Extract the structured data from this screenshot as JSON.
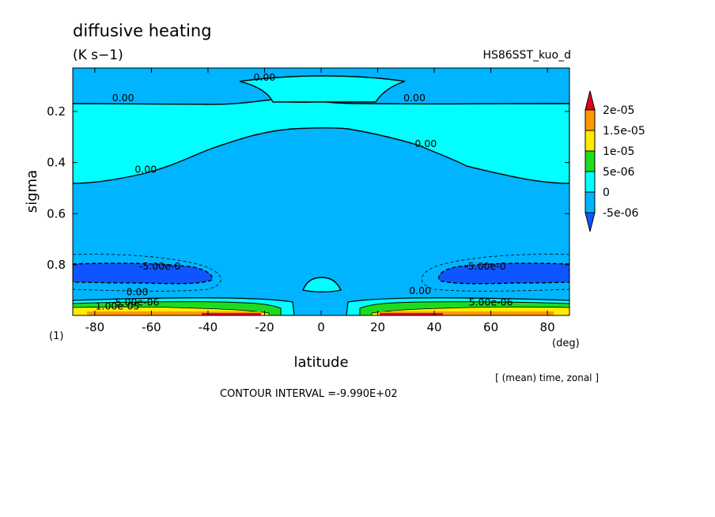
{
  "chart_data": {
    "type": "heatmap",
    "title": "diffusive heating",
    "units": "(K s−1)",
    "run_name": "HS86SST_kuo_d",
    "xlabel": "latitude",
    "x_units": "(deg)",
    "ylabel": "sigma",
    "y_index_label": "(1)",
    "xlim": [
      -87.8,
      87.8
    ],
    "ylim": [
      0.03,
      0.998
    ],
    "y_inverted": true,
    "x_ticks": [
      "-80",
      "-60",
      "-40",
      "-20",
      "0",
      "20",
      "40",
      "60",
      "80"
    ],
    "x_tick_values": [
      -80,
      -60,
      -40,
      -20,
      0,
      20,
      40,
      60,
      80
    ],
    "y_ticks": [
      "0.2",
      "0.4",
      "0.6",
      "0.8"
    ],
    "y_tick_values": [
      0.2,
      0.4,
      0.6,
      0.8
    ],
    "averaging_note": "[ (mean) time, zonal ]",
    "contour_interval": "CONTOUR INTERVAL =-9.990E+02",
    "colorbar": {
      "labels": [
        "2e-05",
        "1.5e-05",
        "1e-05",
        "5e-06",
        "0",
        "-5e-06"
      ],
      "values": [
        2e-05,
        1.5e-05,
        1e-05,
        5e-06,
        0,
        -5e-06
      ],
      "colors": [
        "#e8001c",
        "#ff9900",
        "#ffea00",
        "#1ddc1d",
        "#00ffff",
        "#00b4ff",
        "#0f55ff"
      ]
    },
    "fill_colors": {
      "below_minus_5e-06": "#0f55ff",
      "minus_5e-06_to_0": "#00b4ff",
      "0_to_5e-06": "#00ffff",
      "5e-06_to_1e-05": "#1ddc1d",
      "1e-05_to_1.5e-05": "#ffea00",
      "1.5e-05_to_2e-05": "#ff9900",
      "above_2e-05": "#e8001c"
    },
    "contour_labels": [
      {
        "text": "0.00",
        "lat": -20,
        "sigma": 0.07
      },
      {
        "text": "0.00",
        "lat": -70,
        "sigma": 0.15
      },
      {
        "text": "0.00",
        "lat": 33,
        "sigma": 0.15
      },
      {
        "text": "0.00",
        "lat": -62,
        "sigma": 0.43
      },
      {
        "text": "0.00",
        "lat": 37,
        "sigma": 0.33
      },
      {
        "text": "-5.00e-0",
        "lat": -57,
        "sigma": 0.81
      },
      {
        "text": "-5.00e-0",
        "lat": 58,
        "sigma": 0.81
      },
      {
        "text": "0.00",
        "lat": 35,
        "sigma": 0.905
      },
      {
        "text": "0.00",
        "lat": -65,
        "sigma": 0.91
      },
      {
        "text": "5.00e-06",
        "lat": -65,
        "sigma": 0.95
      },
      {
        "text": "5.00e-06",
        "lat": 60,
        "sigma": 0.95
      },
      {
        "text": "1.00e-05",
        "lat": -72,
        "sigma": 0.965
      }
    ]
  }
}
